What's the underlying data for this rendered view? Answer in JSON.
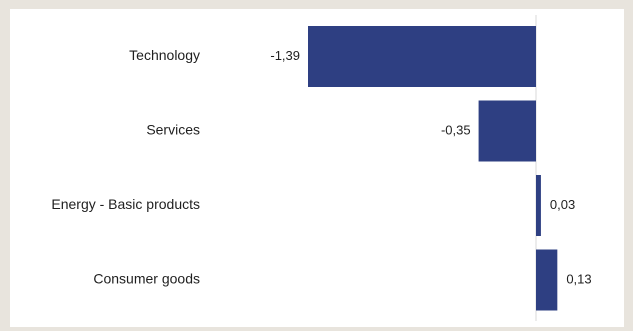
{
  "colors": {
    "background": "#e8e4dd",
    "panel": "#ffffff",
    "bar": "#2e3f82",
    "zero_line": "#d9d9d9",
    "text": "#1f1f1f"
  },
  "chart_data": {
    "type": "bar",
    "orientation": "horizontal",
    "categories": [
      "Technology",
      "Services",
      "Energy - Basic products",
      "Consumer goods"
    ],
    "values": [
      -1.39,
      -0.35,
      0.03,
      0.13
    ],
    "value_labels": [
      "-1,39",
      "-0,35",
      "0,03",
      "0,13"
    ],
    "title": "",
    "xlabel": "",
    "ylabel": "",
    "xlim": [
      -1.5,
      0.2
    ],
    "grid": false,
    "legend": "none"
  }
}
